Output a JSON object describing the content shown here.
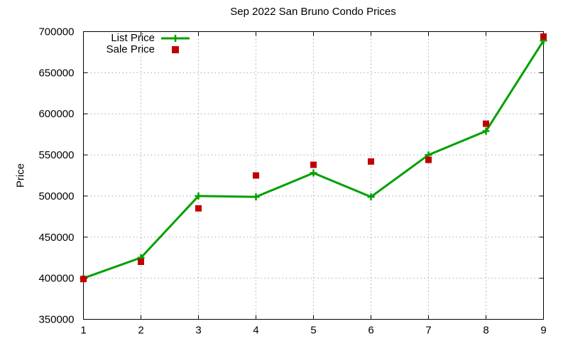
{
  "chart_data": {
    "type": "line",
    "title": "Sep 2022 San Bruno Condo Prices",
    "xlabel": "",
    "ylabel": "Price",
    "x": [
      1,
      2,
      3,
      4,
      5,
      6,
      7,
      8,
      9
    ],
    "series": [
      {
        "name": "List Price",
        "style": "line-with-plus-markers",
        "color": "#00a000",
        "values": [
          400000,
          425000,
          500000,
          499000,
          528000,
          499000,
          550000,
          579000,
          689000
        ]
      },
      {
        "name": "Sale Price",
        "style": "square-points",
        "color": "#c00000",
        "values": [
          399000,
          420000,
          485000,
          525000,
          538000,
          542000,
          544000,
          588000,
          694000
        ]
      }
    ],
    "xlim": [
      1,
      9
    ],
    "ylim": [
      350000,
      700000
    ],
    "xticks": [
      1,
      2,
      3,
      4,
      5,
      6,
      7,
      8,
      9
    ],
    "yticks": [
      350000,
      400000,
      450000,
      500000,
      550000,
      600000,
      650000,
      700000
    ],
    "grid": "dashed-gray",
    "legend_position": "top-left-inside"
  },
  "colors": {
    "list_line": "#00a000",
    "sale_marker": "#c00000",
    "grid": "#a8a8a8",
    "axis": "#000000",
    "background": "#ffffff"
  }
}
